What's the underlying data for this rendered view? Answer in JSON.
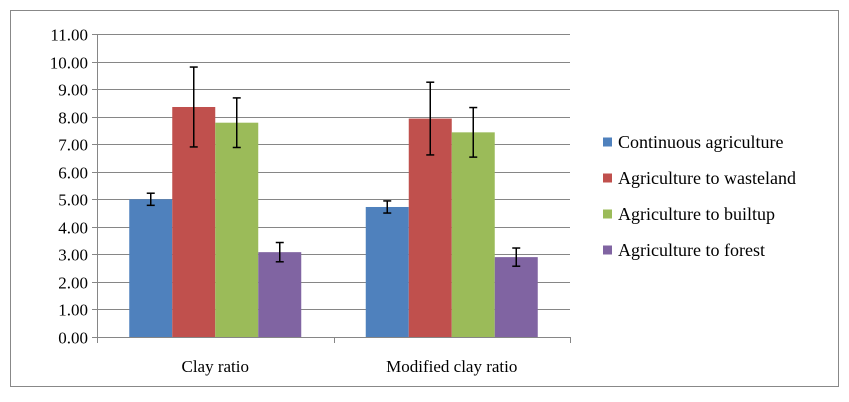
{
  "chart_data": {
    "type": "bar",
    "title": "",
    "xlabel": "",
    "ylabel": "",
    "categories": [
      "Clay ratio",
      "Modified clay ratio"
    ],
    "series": [
      {
        "name": "Continuous agriculture",
        "color": "#4F81BD",
        "values": [
          5.0,
          4.72
        ],
        "error": [
          0.22,
          0.22
        ]
      },
      {
        "name": "Agriculture to wasteland",
        "color": "#C0504D",
        "values": [
          8.35,
          7.93
        ],
        "error": [
          1.45,
          1.32
        ]
      },
      {
        "name": "Agriculture to builtup",
        "color": "#9BBB59",
        "values": [
          7.78,
          7.43
        ],
        "error": [
          0.9,
          0.9
        ]
      },
      {
        "name": "Agriculture to forest",
        "color": "#8064A2",
        "values": [
          3.08,
          2.9
        ],
        "error": [
          0.35,
          0.33
        ]
      }
    ],
    "ylim": [
      0,
      11
    ],
    "yticks": [
      "0.00",
      "1.00",
      "2.00",
      "3.00",
      "4.00",
      "5.00",
      "6.00",
      "7.00",
      "8.00",
      "9.00",
      "10.00",
      "11.00"
    ],
    "grid": true,
    "legend_position": "right"
  }
}
